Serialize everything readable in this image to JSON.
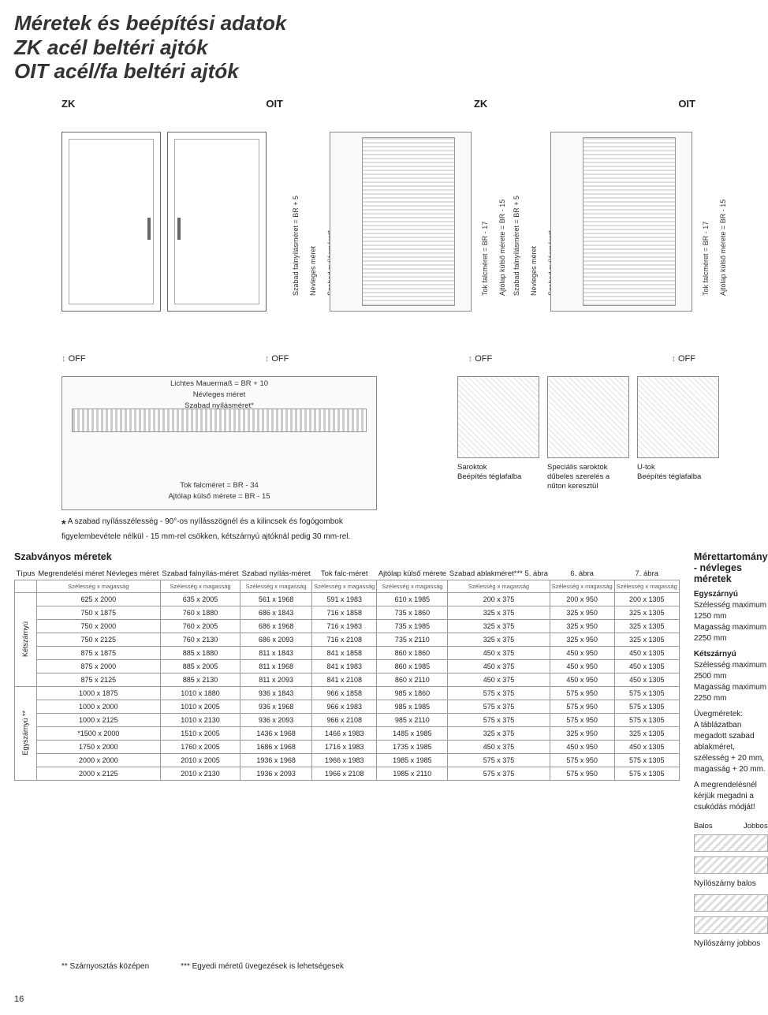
{
  "title_lines": [
    "Méretek és beépítési adatok",
    "ZK acél beltéri ajtók",
    "OIT acél/fa beltéri ajtók"
  ],
  "top_labels": [
    "ZK",
    "OIT",
    "ZK",
    "OIT"
  ],
  "vertical_labels_a": [
    "Szabad falnyílásméret = BR + 5",
    "Névleges méret",
    "Szabad nyílásméret*"
  ],
  "vertical_labels_b": [
    "Tok falcméret = BR - 17",
    "Ajtólap külső mérete = BR - 15"
  ],
  "off": "OFF",
  "dim_stack_top": [
    "Lichtes Mauermaß = BR + 10",
    "Névleges méret",
    "Szabad nyílásméret*"
  ],
  "dim_stack_bottom": [
    "Tok falcméret = BR - 34",
    "Ajtólap külső mérete = BR - 15"
  ],
  "star_note": "A szabad nyílásszélesség - 90°-os nyílásszögnél és a kilincsek és fogógombok figyelembevétele nélkül - 15 mm-rel csökken, kétszárnyú ajtóknál pedig 30 mm-rel.",
  "details": [
    {
      "cap1": "Saroktok",
      "cap2": "Beépítés téglafalba"
    },
    {
      "cap1": "Speciális saroktok",
      "cap2": "dűbeles szerelés a nűton keresztül"
    },
    {
      "cap1": "U-tok",
      "cap2": "Beépítés téglafalba"
    }
  ],
  "table_heading": "Szabványos méretek",
  "side_heading": "Mérettartomány - névleges méretek",
  "col_headers": [
    "Típus",
    "Megrendelési méret Névleges méret",
    "Szabad falnyílás-méret",
    "Szabad nyílás-méret",
    "Tok falc-méret",
    "Ajtólap külső mérete",
    "Szabad ablakméret*** 5. ábra",
    "6. ábra",
    "7. ábra"
  ],
  "subheader": "Szélesség x magasság",
  "group_labels": [
    "Kétszárnyú",
    "Egyszárnyú **"
  ],
  "rows": [
    [
      "625 x 2000",
      "635 x 2005",
      "561 x 1968",
      "591 x 1983",
      "610 x 1985",
      "200 x 375",
      "200 x 950",
      "200 x 1305"
    ],
    [
      "750 x 1875",
      "760 x 1880",
      "686 x 1843",
      "716 x 1858",
      "735 x 1860",
      "325 x 375",
      "325 x 950",
      "325 x 1305"
    ],
    [
      "750 x 2000",
      "760 x 2005",
      "686 x 1968",
      "716 x 1983",
      "735 x 1985",
      "325 x 375",
      "325 x 950",
      "325 x 1305"
    ],
    [
      "750 x 2125",
      "760 x 2130",
      "686 x 2093",
      "716 x 2108",
      "735 x 2110",
      "325 x 375",
      "325 x 950",
      "325 x 1305"
    ],
    [
      "875 x 1875",
      "885 x 1880",
      "811 x 1843",
      "841 x 1858",
      "860 x 1860",
      "450 x 375",
      "450 x 950",
      "450 x 1305"
    ],
    [
      "875 x 2000",
      "885 x 2005",
      "811 x 1968",
      "841 x 1983",
      "860 x 1985",
      "450 x 375",
      "450 x 950",
      "450 x 1305"
    ],
    [
      "875 x 2125",
      "885 x 2130",
      "811 x 2093",
      "841 x 2108",
      "860 x 2110",
      "450 x 375",
      "450 x 950",
      "450 x 1305"
    ],
    [
      "1000 x 1875",
      "1010 x 1880",
      "936 x 1843",
      "966 x 1858",
      "985 x 1860",
      "575 x 375",
      "575 x 950",
      "575 x 1305"
    ],
    [
      "1000 x 2000",
      "1010 x 2005",
      "936 x 1968",
      "966 x 1983",
      "985 x 1985",
      "575 x 375",
      "575 x 950",
      "575 x 1305"
    ],
    [
      "1000 x 2125",
      "1010 x 2130",
      "936 x 2093",
      "966 x 2108",
      "985 x 2110",
      "575 x 375",
      "575 x 950",
      "575 x 1305"
    ],
    [
      "*1500 x 2000",
      "1510 x 2005",
      "1436 x 1968",
      "1466 x 1983",
      "1485 x 1985",
      "325 x 375",
      "325 x 950",
      "325 x 1305"
    ],
    [
      "1750 x 2000",
      "1760 x 2005",
      "1686 x 1968",
      "1716 x 1983",
      "1735 x 1985",
      "450 x 375",
      "450 x 950",
      "450 x 1305"
    ],
    [
      "2000 x 2000",
      "2010 x 2005",
      "1936 x 1968",
      "1966 x 1983",
      "1985 x 1985",
      "575 x 375",
      "575 x 950",
      "575 x 1305"
    ],
    [
      "2000 x 2125",
      "2010 x 2130",
      "1936 x 2093",
      "1966 x 2108",
      "1985 x 2110",
      "575 x 375",
      "575 x 950",
      "575 x 1305"
    ]
  ],
  "foot1": "** Szárnyosztás középen",
  "foot2": "*** Egyedi méretű üvegezések is lehetségesek",
  "side": {
    "e_title": "Egyszárnyú",
    "e1": "Szélesség maximum 1250 mm",
    "e2": "Magasság maximum 2250 mm",
    "k_title": "Kétszárnyú",
    "k1": "Szélesség maximum 2500 mm",
    "k2": "Magasság maximum 2250 mm",
    "uveg": "Üvegméretek:",
    "uveg2": "A táblázatban megadott szabad ablakméret, szélesség + 20 mm, magasság + 20 mm.",
    "note": "A megrendelésnél kérjük megadni a csukódás módját!",
    "balos": "Balos",
    "jobbos": "Jobbos",
    "ny_balos": "Nyílószárny balos",
    "ny_jobbos": "Nyílószárny jobbos"
  },
  "page": "16"
}
